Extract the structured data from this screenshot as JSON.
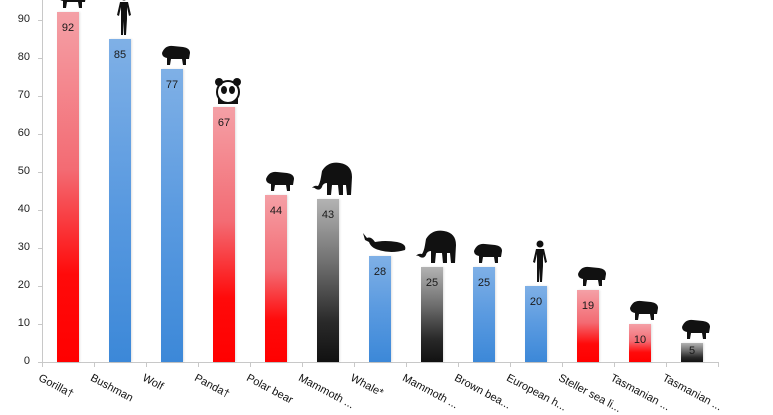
{
  "chart_data": {
    "type": "bar",
    "title": "",
    "xlabel": "",
    "ylabel": "",
    "ylim": [
      0,
      90
    ],
    "yticks": [
      0,
      10,
      20,
      30,
      40,
      50,
      60,
      70,
      80,
      90
    ],
    "grid": false,
    "legend": null,
    "categories": [
      "Gorilla†",
      "Bushman",
      "Wolf",
      "Panda†",
      "Polar bear",
      "Mammoth ...",
      "Whale*",
      "Mammoth ...",
      "Brown bea...",
      "European h...",
      "Steller sea li...",
      "Tasmanian ...",
      "Tasmanian ..."
    ],
    "values": [
      92,
      85,
      77,
      67,
      44,
      43,
      28,
      25,
      25,
      20,
      19,
      10,
      5
    ],
    "bar_colors": [
      "red",
      "blue",
      "blue",
      "red",
      "red",
      "black",
      "blue",
      "black",
      "blue",
      "blue",
      "red",
      "red",
      "black"
    ],
    "data_labels": [
      "92",
      "85",
      "77",
      "67",
      "44",
      "43",
      "28",
      "25",
      "25",
      "20",
      "19",
      "10",
      "5"
    ],
    "icons": [
      "gorilla-icon",
      "bushman-icon",
      "wolf-icon",
      "panda-icon",
      "polar-bear-icon",
      "mammoth-icon",
      "whale-icon",
      "mammoth-icon",
      "brown-bear-icon",
      "human-icon",
      "sea-lion-icon",
      "tasmanian-devil-icon",
      "thylacine-icon"
    ]
  },
  "colors": {
    "red": "#ff0000",
    "red_top": "#f4a0a6",
    "blue": "#3c88d8",
    "blue_top": "#7fb0e6",
    "black": "#111111",
    "black_top": "#b3b3b3",
    "axis": "#c8c8c8"
  }
}
